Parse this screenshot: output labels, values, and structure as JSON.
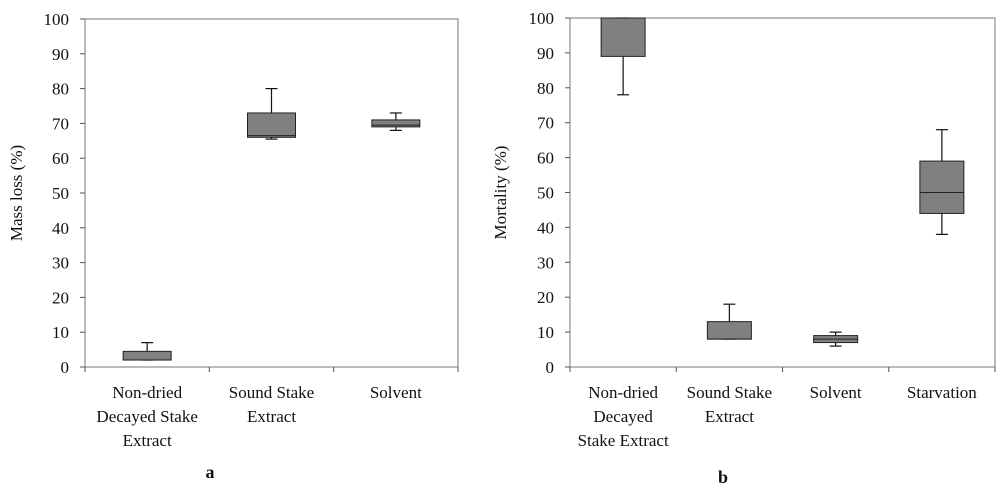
{
  "chart_data": [
    {
      "type": "box",
      "panel_label": "a",
      "ylabel": "Mass loss (%)",
      "ylim": [
        0,
        100
      ],
      "yticks": [
        0,
        10,
        20,
        30,
        40,
        50,
        60,
        70,
        80,
        90,
        100
      ],
      "categories": [
        [
          "Non-dried",
          "Decayed Stake",
          "Extract"
        ],
        [
          "Sound Stake",
          "Extract"
        ],
        [
          "Solvent"
        ]
      ],
      "boxes": [
        {
          "min": 2,
          "q1": 2,
          "median": 2,
          "q3": 4.5,
          "max": 7
        },
        {
          "min": 65.5,
          "q1": 66,
          "median": 66.5,
          "q3": 73,
          "max": 80
        },
        {
          "min": 68,
          "q1": 69,
          "median": 69.5,
          "q3": 71,
          "max": 73
        }
      ],
      "box_color": "#808080"
    },
    {
      "type": "box",
      "panel_label": "b",
      "ylabel": "Mortality (%)",
      "ylim": [
        0,
        100
      ],
      "yticks": [
        0,
        10,
        20,
        30,
        40,
        50,
        60,
        70,
        80,
        90,
        100
      ],
      "categories": [
        [
          "Non-dried",
          "Decayed",
          "Stake Extract"
        ],
        [
          "Sound Stake",
          "Extract"
        ],
        [
          "Solvent"
        ],
        [
          "Starvation"
        ]
      ],
      "boxes": [
        {
          "min": 78,
          "q1": 89,
          "median": 100,
          "q3": 100,
          "max": 100
        },
        {
          "min": 8,
          "q1": 8,
          "median": 8,
          "q3": 13,
          "max": 18
        },
        {
          "min": 6,
          "q1": 7,
          "median": 8,
          "q3": 9,
          "max": 10
        },
        {
          "min": 38,
          "q1": 44,
          "median": 50,
          "q3": 59,
          "max": 68
        }
      ],
      "box_color": "#808080"
    }
  ]
}
